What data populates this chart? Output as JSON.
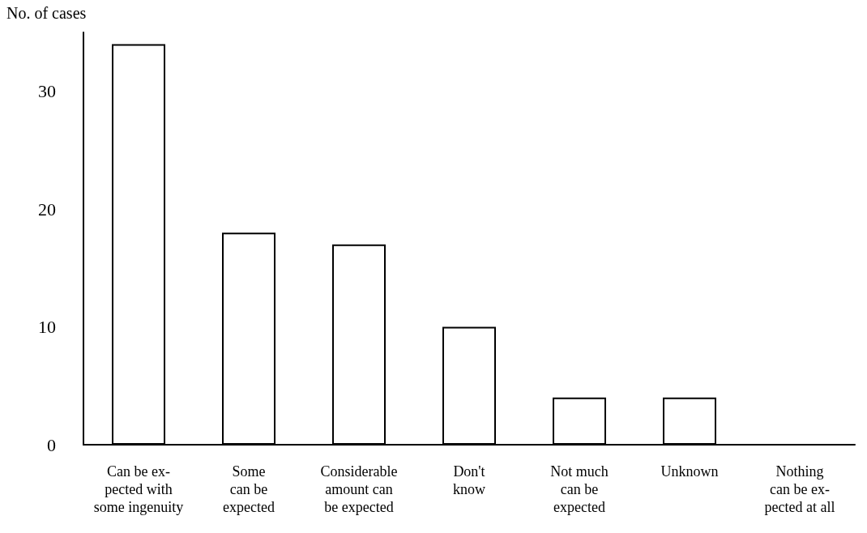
{
  "chart_data": {
    "type": "bar",
    "ylabel": "No. of cases",
    "categories": [
      "Can be ex-\npected with\nsome ingenuity",
      "Some\ncan be\nexpected",
      "Considerable\namount can\nbe expected",
      "Don't\nknow",
      "Not much\ncan be\nexpected",
      "Unknown",
      "Nothing\ncan be ex-\npected at all"
    ],
    "values": [
      34,
      18,
      17,
      10,
      4,
      4,
      0
    ],
    "color": "#ffffff",
    "ylim": [
      0,
      35
    ],
    "yticks": [
      0,
      10,
      20,
      30
    ],
    "grid": false
  }
}
